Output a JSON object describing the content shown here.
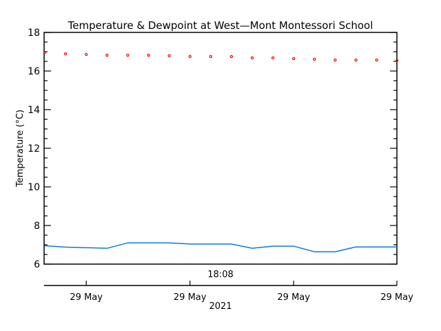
{
  "chart_data": {
    "type": "line",
    "title": "Temperature & Dewpoint at West—Mont Montessori School",
    "xlabel": "2021",
    "ylabel": "Temperature (°C)",
    "ylim": [
      6,
      18
    ],
    "yticks": [
      6,
      8,
      10,
      12,
      14,
      16,
      18
    ],
    "y_minor_step": 0.5,
    "grid": false,
    "time_label": "18:08",
    "xticks": [
      {
        "x_index": 2,
        "label": "29 May"
      },
      {
        "x_index": 7,
        "label": "29 May"
      },
      {
        "x_index": 12,
        "label": "29 May"
      },
      {
        "x_index": 17,
        "label": "29 May"
      }
    ],
    "x_count": 18,
    "series": [
      {
        "name": "Temperature",
        "style": "markers",
        "color": "#ff0000",
        "values": [
          16.96,
          16.89,
          16.86,
          16.82,
          16.82,
          16.82,
          16.79,
          16.75,
          16.75,
          16.75,
          16.68,
          16.68,
          16.64,
          16.61,
          16.57,
          16.57,
          16.57,
          16.54
        ]
      },
      {
        "name": "Dewpoint",
        "style": "line",
        "color": "#0a78e6",
        "values": [
          6.95,
          6.88,
          6.85,
          6.82,
          7.1,
          7.1,
          7.1,
          7.04,
          7.04,
          7.04,
          6.82,
          6.93,
          6.93,
          6.64,
          6.64,
          6.89,
          6.89,
          6.89
        ]
      }
    ]
  }
}
